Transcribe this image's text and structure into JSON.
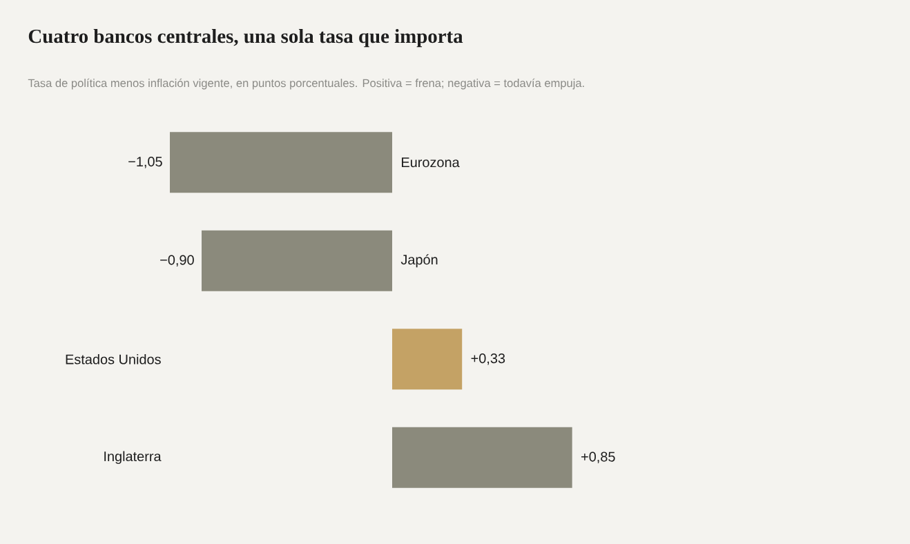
{
  "chart_data": {
    "type": "bar",
    "orientation": "horizontal",
    "title": "Cuatro bancos centrales, una sola tasa que importa",
    "subtitle": "Tasa de política menos inflación vigente, en puntos porcentuales. Positiva = frena; negativa = todavía empuja.",
    "categories": [
      "Eurozona",
      "Japón",
      "Estados Unidos",
      "Inglaterra"
    ],
    "values": [
      -1.05,
      -0.9,
      0.33,
      0.85
    ],
    "colors": [
      "#8b8a7c",
      "#8b8a7c",
      "#c4a265",
      "#8b8a7c"
    ],
    "value_labels": [
      "−1,05",
      "−0,90",
      "+0,33",
      "+0,85"
    ]
  }
}
